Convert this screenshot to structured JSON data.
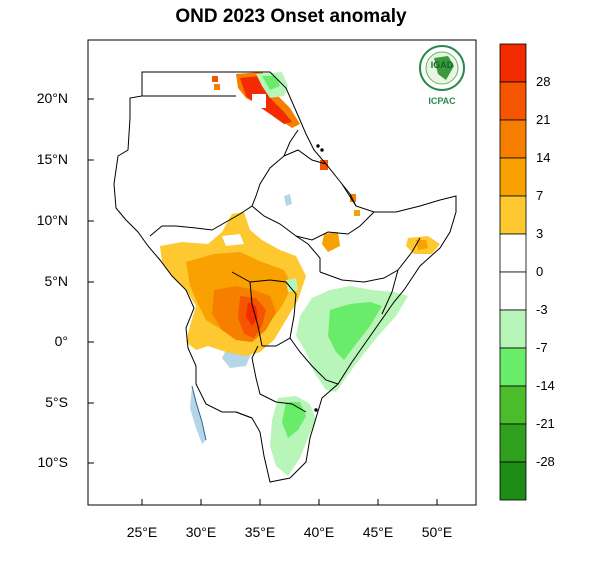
{
  "title": "OND 2023 Onset anomaly",
  "map": {
    "lon_ticks": [
      "25°E",
      "30°E",
      "35°E",
      "40°E",
      "45°E",
      "50°E"
    ],
    "lat_ticks": [
      "20°N",
      "15°N",
      "10°N",
      "5°N",
      "0°",
      "5°S",
      "10°S"
    ],
    "lon_range": [
      20.5,
      53
    ],
    "lat_range": [
      -13.5,
      25
    ]
  },
  "logo": {
    "top_text": "IGAD",
    "bottom_text": "ICPAC"
  },
  "colorbar": {
    "labels": [
      "28",
      "21",
      "14",
      "7",
      "3",
      "0",
      "-3",
      "-7",
      "-14",
      "-21",
      "-28"
    ],
    "colors": [
      "#f42a00",
      "#f55500",
      "#f77f00",
      "#f8a100",
      "#fec930",
      "#ffffff",
      "#ffffff",
      "#b8f5b8",
      "#69ec69",
      "#4cbd2a",
      "#2fa01e",
      "#1d8c14"
    ]
  }
}
